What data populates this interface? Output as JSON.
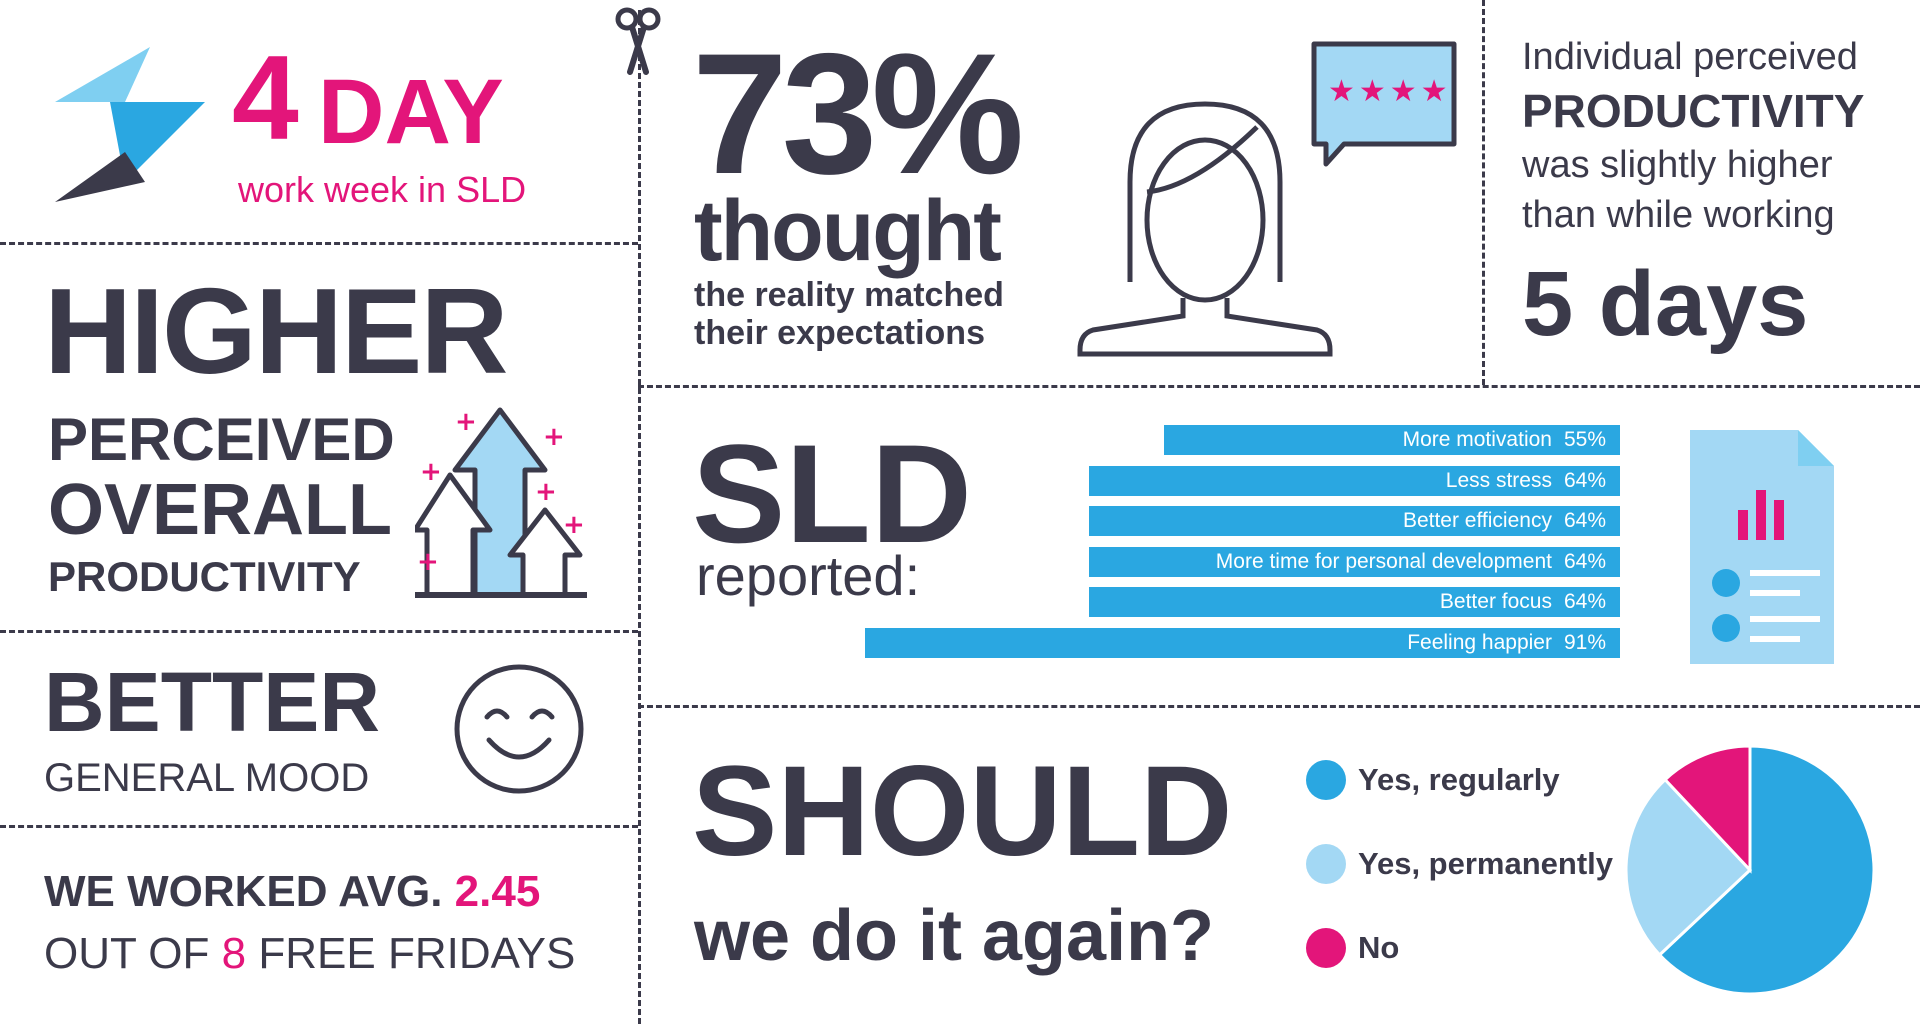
{
  "header": {
    "big_number": "4",
    "big_word": "DAY",
    "subtitle": "work week in SLD"
  },
  "productivity_block": {
    "headline": "HIGHER",
    "line1": "PERCEIVED",
    "line2": "OVERALL",
    "line3": "PRODUCTIVITY"
  },
  "mood_block": {
    "headline": "BETTER",
    "subline": "GENERAL MOOD"
  },
  "fridays_block": {
    "line1_prefix": "WE WORKED AVG.",
    "line1_value": "2.45",
    "line2_prefix": "OUT OF",
    "line2_value": "8",
    "line2_suffix": "FREE FRIDAYS"
  },
  "expectations_block": {
    "percent": "73%",
    "word": "thought",
    "line1": "the reality matched",
    "line2": "their expectations",
    "rating_stars": "★★★★"
  },
  "individual_block": {
    "line1": "Individual perceived",
    "line2": "PRODUCTIVITY",
    "line3": "was slightly higher",
    "line4": "than while working",
    "line5": "5 days"
  },
  "reported_block": {
    "headline": "SLD",
    "subline": "reported:"
  },
  "chart_data": [
    {
      "type": "bar",
      "orientation": "horizontal",
      "categories": [
        "More motivation",
        "Less stress",
        "Better efficiency",
        "More time for personal development",
        "Better focus",
        "Feeling happier"
      ],
      "values": [
        55,
        64,
        64,
        64,
        64,
        91
      ],
      "value_labels": [
        "55%",
        "64%",
        "64%",
        "64%",
        "64%",
        "91%"
      ],
      "colors": [
        "#2aa7e1"
      ]
    },
    {
      "type": "pie",
      "categories": [
        "Yes, regularly",
        "Yes, permanently",
        "No"
      ],
      "values": [
        63,
        25,
        12
      ],
      "colors": [
        "#2aa7e1",
        "#a3d8f4",
        "#e3157a"
      ]
    }
  ],
  "should_block": {
    "headline": "SHOULD",
    "subline": "we do it again?"
  },
  "colors": {
    "dark": "#3b3a4a",
    "pink": "#e3157a",
    "blue": "#2aa7e1",
    "light_blue": "#a3d8f4"
  },
  "icons": {
    "logo": "arrow-bolt-logo-icon",
    "scissors": "scissors-icon",
    "person": "person-outline-icon",
    "speech": "speech-bubble-rating-icon",
    "arrows": "rising-arrows-icon",
    "smiley": "smiley-face-icon",
    "document": "report-document-icon"
  }
}
